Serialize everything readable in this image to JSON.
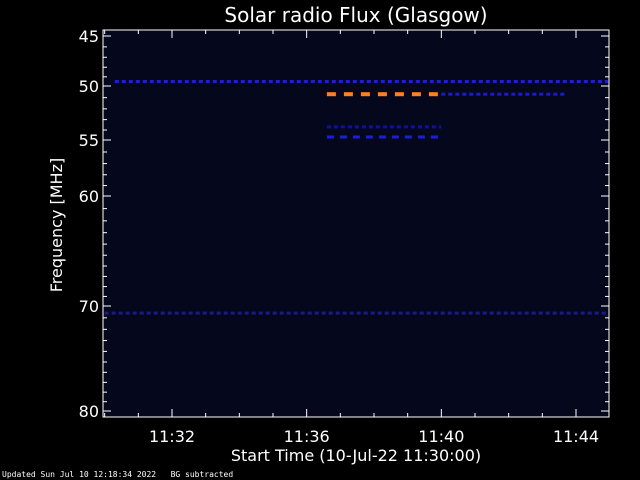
{
  "chart_data": {
    "type": "heatmap",
    "title": "Solar radio Flux (Glasgow)",
    "xlabel": "Start Time (10-Jul-22 11:30:00)",
    "ylabel": "Frequency [MHz]",
    "x_range_minutes": [
      0,
      15
    ],
    "y_range_mhz": [
      45,
      80
    ],
    "y_ticks": [
      45,
      50,
      55,
      60,
      70,
      80
    ],
    "y_tick_labels": [
      "45",
      "50",
      "55",
      "60",
      "70",
      "80"
    ],
    "x_ticks_minutes": [
      2,
      6,
      10,
      14
    ],
    "x_tick_labels": [
      "11:32",
      "11:36",
      "11:40",
      "11:44"
    ],
    "background_color": "#05081c",
    "features": [
      {
        "label": "steady band",
        "freq_mhz": 49.5,
        "t_start_min": 0.3,
        "t_end_min": 15.0,
        "intensity": "low",
        "color": "#1e1ed8"
      },
      {
        "label": "burst band",
        "freq_mhz": 50.7,
        "t_start_min": 6.6,
        "t_end_min": 10.0,
        "intensity": "high",
        "color": "#ff7f24"
      },
      {
        "label": "band",
        "freq_mhz": 50.7,
        "t_start_min": 10.0,
        "t_end_min": 13.7,
        "intensity": "low",
        "color": "#1a1ad0"
      },
      {
        "label": "band",
        "freq_mhz": 53.7,
        "t_start_min": 6.6,
        "t_end_min": 10.0,
        "intensity": "low",
        "color": "#1010a0"
      },
      {
        "label": "band",
        "freq_mhz": 54.7,
        "t_start_min": 6.6,
        "t_end_min": 10.0,
        "intensity": "medium",
        "color": "#1c1ce0"
      },
      {
        "label": "interference band",
        "freq_mhz": 70.6,
        "t_start_min": 0.0,
        "t_end_min": 15.0,
        "intensity": "low",
        "color": "#1a1a88"
      }
    ]
  },
  "footer": {
    "updated": "Updated Sun Jul 10 12:18:34 2022",
    "note": "BG subtracted"
  }
}
